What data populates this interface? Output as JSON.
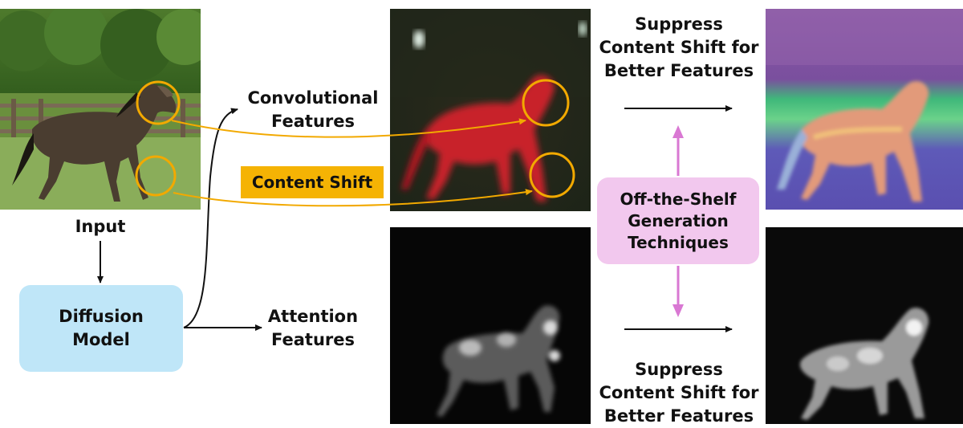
{
  "input_label": "Input",
  "diffusion_model": [
    "Diffusion",
    "Model"
  ],
  "conv_features": [
    "Convolutional",
    "Features"
  ],
  "attention_features": [
    "Attention",
    "Features"
  ],
  "content_shift": "Content Shift",
  "suppress_top": [
    "Suppress",
    "Content Shift for",
    "Better Features"
  ],
  "suppress_bottom": [
    "Suppress",
    "Content Shift for",
    "Better Features"
  ],
  "off_the_shelf": [
    "Off-the-Shelf",
    "Generation",
    "Techniques"
  ],
  "colors": {
    "content_shift_badge": "#f5b304",
    "circle_orange": "#f2a900",
    "diffusion_box": "#bfe6f8",
    "offshelf_box": "#f2c8ee",
    "pink_arrow": "#d978d3"
  }
}
